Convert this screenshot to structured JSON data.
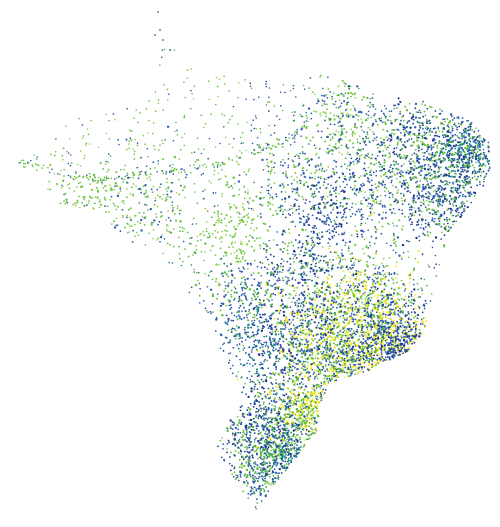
{
  "map": {
    "subject": "Brazil",
    "background_color": "#ffffff",
    "palette": {
      "dark_blue": "#1f3a93",
      "blue": "#2d5fb0",
      "teal": "#1f8a8a",
      "green": "#5fbf3a",
      "light_green": "#8fd14f",
      "yellow": "#f4e71a"
    },
    "legend": null,
    "title": ""
  }
}
